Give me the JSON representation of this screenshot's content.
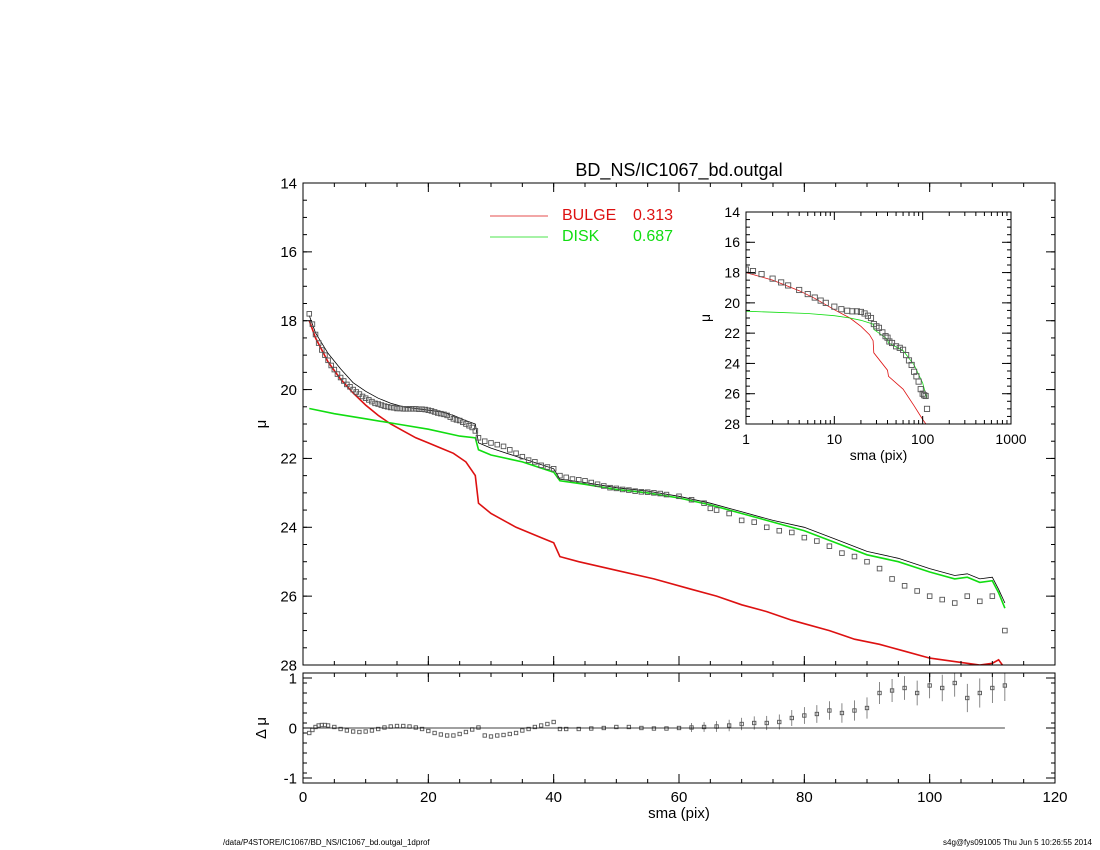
{
  "footer": {
    "left": "/data/P4STORE/IC1067/BD_NS/IC1067_bd.outgal_1dprof",
    "right": "s4g@fys091005  Thu Jun  5 10:26:55 2014"
  },
  "colors": {
    "bulge": "#dd1111",
    "disk": "#11dd11",
    "total": "#000000",
    "points": "#555555"
  },
  "chart_data": [
    {
      "id": "main",
      "type": "scatter",
      "title": "BD_NS/IC1067_bd.outgal",
      "xlabel": "",
      "ylabel": "μ",
      "xlim": [
        0,
        120
      ],
      "ylim": [
        28,
        14
      ],
      "y_ticks": [
        14,
        16,
        18,
        20,
        22,
        24,
        26,
        28
      ],
      "legend": [
        {
          "name": "BULGE",
          "value": "0.313",
          "color": "#dd1111"
        },
        {
          "name": "DISK",
          "value": "0.687",
          "color": "#11dd11"
        }
      ],
      "legend_position": "top",
      "series": [
        {
          "name": "BULGE",
          "kind": "line",
          "x": [
            1,
            2,
            4,
            6,
            8,
            10,
            12,
            14,
            16,
            18,
            20,
            22,
            24,
            26,
            27.5,
            28,
            30,
            34,
            38,
            40,
            41,
            44,
            50,
            56,
            62,
            66,
            70,
            74,
            78,
            80,
            84,
            88,
            92,
            96,
            100,
            104,
            108,
            110,
            111,
            112
          ],
          "y": [
            18.0,
            18.5,
            19.2,
            19.7,
            20.1,
            20.45,
            20.75,
            21.0,
            21.2,
            21.4,
            21.55,
            21.7,
            21.85,
            22.1,
            22.5,
            23.3,
            23.6,
            24.0,
            24.3,
            24.45,
            24.85,
            25.0,
            25.25,
            25.5,
            25.8,
            26.0,
            26.25,
            26.45,
            26.7,
            26.8,
            27.0,
            27.25,
            27.4,
            27.6,
            27.8,
            27.9,
            28.0,
            27.95,
            27.85,
            28.1
          ]
        },
        {
          "name": "DISK",
          "kind": "line",
          "x": [
            1,
            5,
            10,
            15,
            20,
            25,
            27.5,
            28,
            30,
            35,
            40,
            41,
            45,
            50,
            55,
            60,
            65,
            70,
            75,
            80,
            85,
            90,
            95,
            100,
            104,
            106,
            108,
            110,
            111,
            112
          ],
          "y": [
            20.55,
            20.7,
            20.85,
            21.0,
            21.15,
            21.35,
            21.4,
            21.75,
            21.9,
            22.1,
            22.4,
            22.65,
            22.75,
            22.9,
            23.0,
            23.15,
            23.35,
            23.6,
            23.85,
            24.1,
            24.45,
            24.8,
            25.0,
            25.3,
            25.5,
            25.45,
            25.6,
            25.55,
            25.9,
            26.35
          ]
        },
        {
          "name": "total",
          "kind": "line",
          "x": [
            1,
            2,
            4,
            6,
            8,
            10,
            12,
            14,
            16,
            18,
            20,
            22,
            24,
            26,
            27.5,
            28,
            30,
            35,
            40,
            41,
            45,
            50,
            55,
            60,
            65,
            70,
            75,
            80,
            85,
            90,
            95,
            100,
            104,
            106,
            108,
            110,
            111,
            112
          ],
          "y": [
            17.85,
            18.35,
            18.95,
            19.4,
            19.8,
            20.05,
            20.25,
            20.4,
            20.5,
            20.55,
            20.6,
            20.65,
            20.75,
            20.9,
            21.0,
            21.55,
            21.7,
            22.0,
            22.3,
            22.6,
            22.7,
            22.85,
            22.95,
            23.1,
            23.3,
            23.55,
            23.8,
            24.0,
            24.35,
            24.7,
            24.9,
            25.2,
            25.4,
            25.35,
            25.5,
            25.45,
            25.8,
            26.2
          ]
        },
        {
          "name": "data",
          "kind": "points",
          "x": [
            1,
            1.5,
            2,
            2.5,
            3,
            3.5,
            4,
            4.5,
            5,
            5.5,
            6,
            6.5,
            7,
            7.5,
            8,
            8.5,
            9,
            9.5,
            10,
            10.5,
            11,
            11.5,
            12,
            12.5,
            13,
            13.5,
            14,
            14.5,
            15,
            15.5,
            16,
            16.5,
            17,
            17.5,
            18,
            18.5,
            19,
            19.5,
            20,
            20.5,
            21,
            21.5,
            22,
            22.5,
            23,
            23.5,
            24,
            24.5,
            25,
            25.5,
            26,
            26.5,
            27,
            27.5,
            28,
            29,
            30,
            31,
            32,
            33,
            34,
            35,
            36,
            37,
            38,
            39,
            40,
            41,
            42,
            43,
            44,
            45,
            46,
            47,
            48,
            49,
            50,
            51,
            52,
            53,
            54,
            55,
            56,
            57,
            58,
            60,
            62,
            64,
            65,
            66,
            68,
            70,
            72,
            74,
            76,
            78,
            80,
            82,
            84,
            86,
            88,
            90,
            92,
            94,
            96,
            98,
            100,
            102,
            104,
            106,
            108,
            110,
            112
          ],
          "y": [
            17.8,
            18.1,
            18.4,
            18.65,
            18.85,
            19.0,
            19.15,
            19.3,
            19.42,
            19.55,
            19.65,
            19.75,
            19.85,
            19.92,
            20.0,
            20.07,
            20.13,
            20.2,
            20.25,
            20.3,
            20.35,
            20.4,
            20.42,
            20.45,
            20.48,
            20.5,
            20.52,
            20.53,
            20.55,
            20.55,
            20.56,
            20.56,
            20.56,
            20.56,
            20.56,
            20.57,
            20.57,
            20.58,
            20.6,
            20.62,
            20.65,
            20.68,
            20.7,
            20.72,
            20.75,
            20.8,
            20.85,
            20.88,
            20.9,
            20.95,
            21.0,
            21.05,
            21.1,
            21.2,
            21.4,
            21.5,
            21.55,
            21.6,
            21.65,
            21.75,
            21.85,
            21.95,
            22.05,
            22.1,
            22.2,
            22.25,
            22.3,
            22.5,
            22.55,
            22.6,
            22.62,
            22.65,
            22.7,
            22.75,
            22.8,
            22.85,
            22.87,
            22.9,
            22.92,
            22.95,
            22.97,
            22.98,
            23.0,
            23.02,
            23.05,
            23.1,
            23.2,
            23.3,
            23.45,
            23.5,
            23.6,
            23.8,
            23.85,
            24.0,
            24.1,
            24.15,
            24.3,
            24.4,
            24.55,
            24.75,
            24.85,
            25.0,
            25.2,
            25.5,
            25.7,
            25.85,
            26.0,
            26.1,
            26.2,
            26.0,
            26.15,
            26.0,
            27.0
          ]
        }
      ]
    },
    {
      "id": "residual",
      "type": "scatter",
      "title": "",
      "xlabel": "sma (pix)",
      "ylabel": "Δ μ",
      "xlim": [
        0,
        120
      ],
      "ylim": [
        -1.1,
        1.1
      ],
      "x_ticks": [
        0,
        20,
        40,
        60,
        80,
        100,
        120
      ],
      "y_ticks": [
        -1,
        0,
        1
      ],
      "series": [
        {
          "name": "residual",
          "kind": "points",
          "x": [
            1,
            1.5,
            2,
            2.5,
            3,
            3.5,
            4,
            5,
            6,
            7,
            8,
            9,
            10,
            11,
            12,
            13,
            14,
            15,
            16,
            17,
            18,
            19,
            20,
            21,
            22,
            23,
            24,
            25,
            26,
            27,
            28,
            29,
            30,
            31,
            32,
            33,
            34,
            35,
            36,
            37,
            38,
            39,
            40,
            41,
            42,
            44,
            46,
            48,
            50,
            52,
            54,
            56,
            58,
            60,
            62,
            64,
            66,
            68,
            70,
            72,
            74,
            76,
            78,
            80,
            82,
            84,
            86,
            88,
            90,
            92,
            94,
            96,
            98,
            100,
            102,
            104,
            106,
            108,
            110,
            112
          ],
          "y": [
            -0.1,
            -0.04,
            0.02,
            0.05,
            0.06,
            0.06,
            0.05,
            0.02,
            -0.02,
            -0.05,
            -0.07,
            -0.08,
            -0.07,
            -0.05,
            -0.02,
            0.01,
            0.03,
            0.04,
            0.04,
            0.03,
            0.01,
            -0.02,
            -0.06,
            -0.1,
            -0.13,
            -0.15,
            -0.15,
            -0.12,
            -0.08,
            -0.03,
            0.01,
            -0.15,
            -0.17,
            -0.15,
            -0.14,
            -0.12,
            -0.1,
            -0.05,
            -0.02,
            0.02,
            0.05,
            0.08,
            0.12,
            -0.02,
            -0.02,
            -0.02,
            -0.01,
            0.0,
            0.02,
            0.02,
            0.0,
            -0.01,
            -0.01,
            0.0,
            0.01,
            0.02,
            0.03,
            0.05,
            0.08,
            0.1,
            0.1,
            0.12,
            0.2,
            0.25,
            0.28,
            0.35,
            0.3,
            0.35,
            0.4,
            0.7,
            0.75,
            0.8,
            0.7,
            0.85,
            0.8,
            0.9,
            0.6,
            0.7,
            0.8,
            0.85
          ]
        },
        {
          "name": "zero",
          "kind": "line",
          "x": [
            0,
            112
          ],
          "y": [
            0,
            0
          ]
        }
      ]
    },
    {
      "id": "inset",
      "type": "scatter",
      "title": "",
      "xlabel": "sma (pix)",
      "ylabel": "μ",
      "xscale": "log",
      "xlim": [
        1,
        1000
      ],
      "ylim": [
        28,
        14
      ],
      "x_ticks": [
        1,
        10,
        100,
        1000
      ],
      "y_ticks": [
        14,
        16,
        18,
        20,
        22,
        24,
        26,
        28
      ],
      "series": [
        {
          "name": "BULGE",
          "kind": "line",
          "x": [
            1,
            2,
            4,
            6,
            10,
            15,
            20,
            25,
            27.5,
            28,
            40,
            41,
            60,
            80,
            100,
            112
          ],
          "y": [
            18.0,
            18.5,
            19.2,
            19.7,
            20.45,
            21.0,
            21.55,
            22.1,
            22.5,
            23.3,
            24.45,
            24.85,
            25.7,
            26.8,
            27.7,
            28.1
          ]
        },
        {
          "name": "DISK",
          "kind": "line",
          "x": [
            1,
            2,
            5,
            10,
            15,
            20,
            27.5,
            28,
            40,
            41,
            60,
            80,
            100,
            112
          ],
          "y": [
            20.55,
            20.62,
            20.7,
            20.85,
            21.0,
            21.15,
            21.4,
            21.75,
            22.4,
            22.65,
            23.15,
            24.1,
            25.3,
            26.35
          ]
        },
        {
          "name": "data",
          "kind": "points",
          "x": [
            1,
            1.2,
            1.5,
            2,
            2.5,
            3,
            4,
            5,
            6,
            7,
            8,
            10,
            12,
            14,
            16,
            18,
            20,
            22,
            24,
            26,
            28,
            30,
            32,
            35,
            38,
            40,
            42,
            45,
            50,
            55,
            60,
            65,
            70,
            75,
            80,
            85,
            90,
            95,
            100,
            104,
            108,
            112
          ],
          "y": [
            17.8,
            17.9,
            18.1,
            18.4,
            18.65,
            18.85,
            19.15,
            19.42,
            19.65,
            19.85,
            20.0,
            20.25,
            20.42,
            20.52,
            20.56,
            20.56,
            20.6,
            20.7,
            20.85,
            21.0,
            21.4,
            21.55,
            21.65,
            21.95,
            22.2,
            22.3,
            22.55,
            22.65,
            22.87,
            22.97,
            23.1,
            23.45,
            23.8,
            24.1,
            24.55,
            24.85,
            25.2,
            25.7,
            26.0,
            26.1,
            26.15,
            27.0
          ]
        }
      ]
    }
  ]
}
